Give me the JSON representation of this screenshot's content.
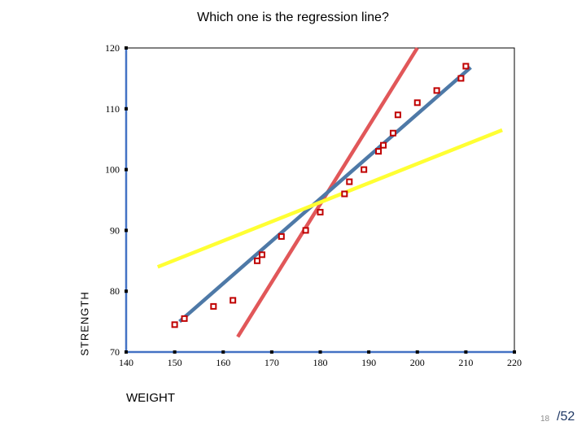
{
  "page": {
    "page_number": "18",
    "page_total": "/52"
  },
  "chart_data": {
    "type": "scatter",
    "title": "Which one is the regression line?",
    "xlabel": "WEIGHT",
    "ylabel": "STRENGTH",
    "xlim": [
      140,
      220
    ],
    "ylim": [
      70,
      120
    ],
    "xticks": [
      140,
      150,
      160,
      170,
      180,
      190,
      200,
      210,
      220
    ],
    "yticks": [
      70,
      80,
      90,
      100,
      110,
      120
    ],
    "grid": false,
    "legend": "none",
    "points": {
      "x": [
        150,
        152,
        158,
        162,
        167,
        168,
        172,
        177,
        180,
        185,
        186,
        189,
        192,
        193,
        195,
        196,
        200,
        204,
        209,
        210
      ],
      "y": [
        74.5,
        75.5,
        77.5,
        78.5,
        85,
        86,
        89,
        90,
        93,
        96,
        98,
        100,
        103,
        104,
        106,
        109,
        111,
        113,
        115,
        117
      ],
      "color": "#c00000"
    },
    "lines": [
      {
        "color": "#e15759",
        "x": [
          163,
          200
        ],
        "y": [
          72.5,
          120
        ]
      },
      {
        "color": "#4e79a7",
        "x": [
          151,
          211
        ],
        "y": [
          75,
          116.8
        ]
      },
      {
        "color": "#ffff33",
        "x": [
          146.5,
          217.5
        ],
        "y": [
          84,
          106.5
        ]
      }
    ]
  }
}
